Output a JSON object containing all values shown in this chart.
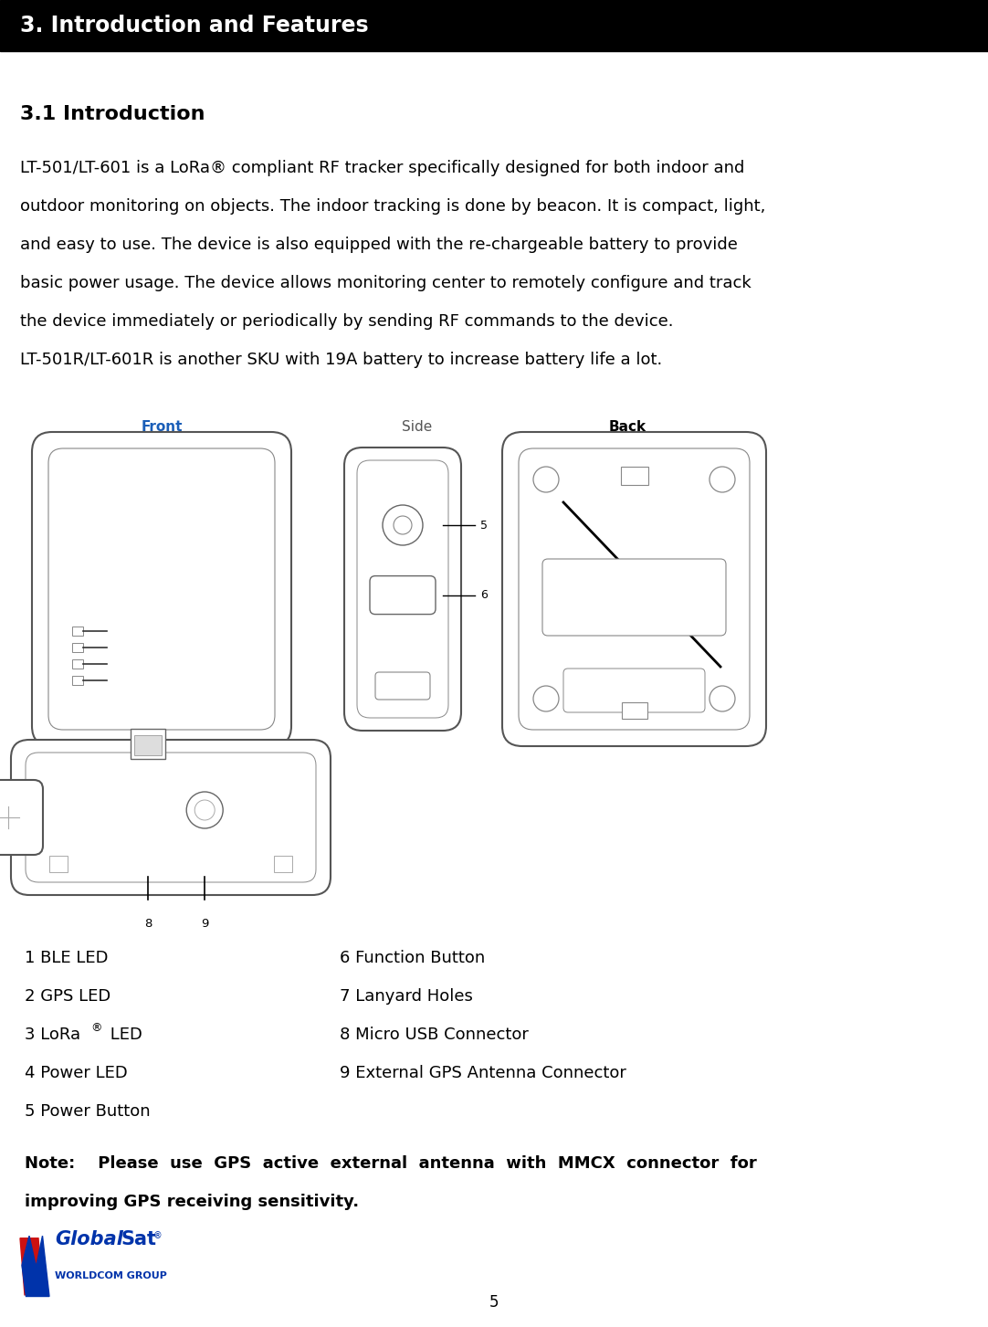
{
  "page_width": 10.82,
  "page_height": 14.53,
  "dpi": 100,
  "bg_color": "#ffffff",
  "header_bg": "#000000",
  "header_text": "3. Introduction and Features",
  "header_text_color": "#ffffff",
  "header_font_size": 17,
  "section_title": "3.1 Introduction",
  "section_title_font_size": 16,
  "body_lines": [
    "LT-501/LT-601 is a LoRa® compliant RF tracker specifically designed for both indoor and",
    "outdoor monitoring on objects. The indoor tracking is done by beacon. It is compact, light,",
    "and easy to use. The device is also equipped with the re-chargeable battery to provide",
    "basic power usage. The device allows monitoring center to remotely configure and track",
    "the device immediately or periodically by sending RF commands to the device.",
    "LT-501R/LT-601R is another SKU with 19A battery to increase battery life a lot."
  ],
  "body_font_size": 13,
  "label_left_col": [
    "1 BLE LED",
    "2 GPS LED",
    "3 LoRa® LED",
    "4 Power LED",
    "5 Power Button"
  ],
  "label_right_col": [
    "6 Function Button",
    "7 Lanyard Holes",
    "8 Micro USB Connector",
    "9 External GPS Antenna Connector"
  ],
  "note_line1": "Note:    Please  use  GPS  active  external  antenna  with  MMCX  connector  for",
  "note_line2": "improving GPS receiving sensitivity.",
  "page_number": "5",
  "label_font_size": 13,
  "note_font_size": 13,
  "front_label_color": "#1a5eb8",
  "side_label_color": "#555555",
  "back_label_color": "#000000",
  "bottom_label_color": "#1a5eb8"
}
